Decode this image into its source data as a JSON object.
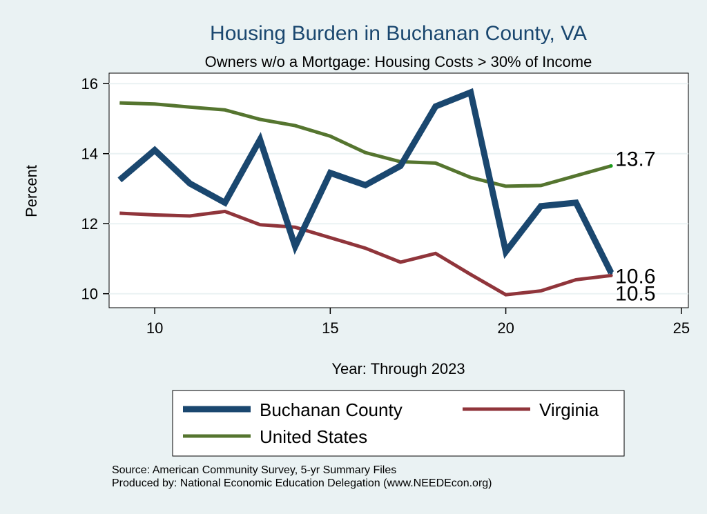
{
  "chart_data": {
    "type": "line",
    "title": "Housing Burden in Buchanan County, VA",
    "subtitle": "Owners w/o a Mortgage: Housing Costs > 30% of Income",
    "xlabel": "Year: Through 2023",
    "ylabel": "Percent",
    "xlim": [
      8.7,
      25.2
    ],
    "ylim": [
      9.6,
      16.3
    ],
    "xticks": [
      10,
      15,
      20,
      25
    ],
    "yticks": [
      10,
      12,
      14,
      16
    ],
    "grid": true,
    "x": [
      9,
      10,
      11,
      12,
      13,
      14,
      15,
      16,
      17,
      18,
      19,
      20,
      21,
      22,
      23
    ],
    "series": [
      {
        "name": "Buchanan County",
        "color": "#1a476f",
        "values": [
          13.25,
          14.1,
          13.15,
          12.6,
          14.4,
          11.35,
          13.45,
          13.1,
          13.65,
          15.35,
          15.75,
          11.2,
          12.5,
          12.6,
          10.6
        ],
        "end_label": "10.6"
      },
      {
        "name": "Virginia",
        "color": "#90353b",
        "values": [
          12.3,
          12.25,
          12.22,
          12.35,
          11.97,
          11.9,
          11.6,
          11.3,
          10.9,
          11.15,
          10.55,
          9.97,
          10.08,
          10.4,
          10.52
        ],
        "end_label": "10.5"
      },
      {
        "name": "United States",
        "color": "#55752f",
        "values": [
          15.45,
          15.42,
          15.33,
          15.25,
          14.98,
          14.8,
          14.5,
          14.03,
          13.77,
          13.73,
          13.32,
          13.07,
          13.09,
          13.37,
          13.65
        ],
        "end_label": "13.7"
      }
    ],
    "legend_position": "bottom"
  },
  "source_note": "Source: American Community Survey, 5-yr Summary Files",
  "produced_note": "Produced by: National Economic Education Delegation (www.NEEDEcon.org)"
}
